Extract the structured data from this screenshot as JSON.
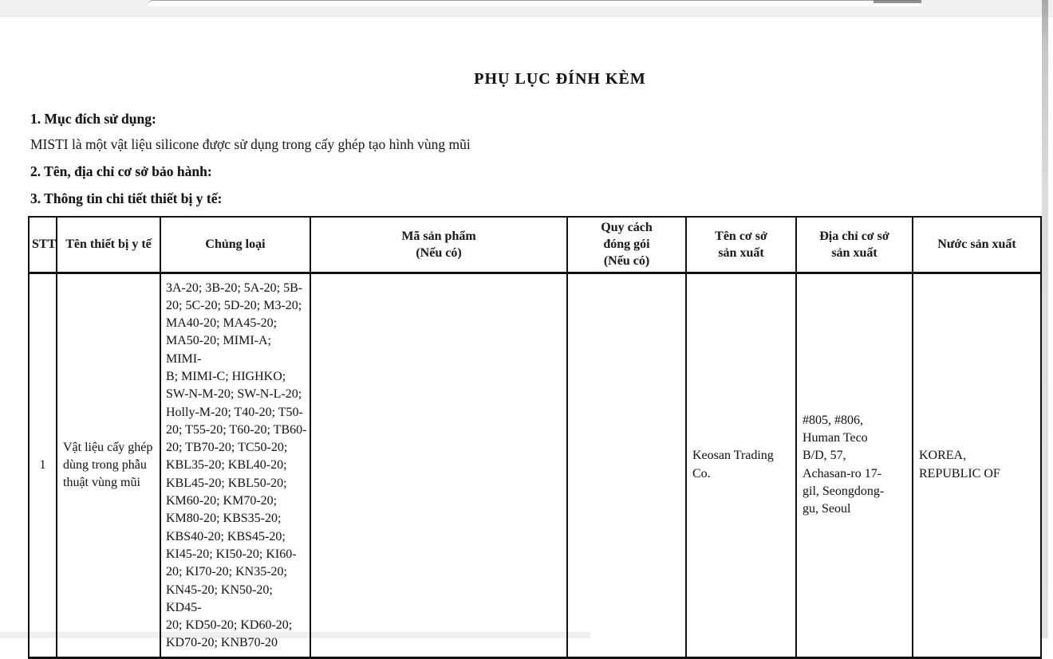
{
  "document": {
    "title": "PHỤ LỤC ĐÍNH KÈM",
    "sections": {
      "s1_heading": "1. Mục đích sử dụng:",
      "s1_body": "MISTI là một vật liệu silicone được sử dụng trong cấy ghép tạo hình vùng mũi",
      "s2_heading": "2. Tên, địa chỉ cơ sở bảo hành:",
      "s3_heading": "3. Thông tin chi tiết thiết bị y tế:"
    },
    "table": {
      "headers": {
        "stt": {
          "lines": [
            "STT"
          ]
        },
        "ten_thiet_bi": {
          "lines": [
            "Tên thiết bị y tế"
          ]
        },
        "chung_loai": {
          "lines": [
            "Chủng loại"
          ]
        },
        "ma_san_pham": {
          "lines": [
            "Mã sản phẩm",
            "(Nếu có)"
          ]
        },
        "quy_cach": {
          "lines": [
            "Quy cách",
            "đóng gói",
            "(Nếu có)"
          ]
        },
        "ten_co_so": {
          "lines": [
            "Tên cơ sở",
            "sản xuất"
          ]
        },
        "dia_chi": {
          "lines": [
            "Địa chỉ cơ sở",
            "sản xuất"
          ]
        },
        "nuoc": {
          "lines": [
            "Nước sản xuất"
          ]
        }
      },
      "rows": [
        {
          "stt": "1",
          "ten_thiet_bi": {
            "value": "Vật liệu cấy ghép dùng trong phẫu thuật vùng mũi",
            "lines": [
              "Vật liệu cấy ghép",
              "dùng trong phẫu",
              "thuật vùng mũi"
            ]
          },
          "chung_loai": {
            "value": "3A-20; 3B-20; 5A-20; 5B-20; 5C-20; 5D-20; M3-20; MA40-20; MA45-20; MA50-20; MIMI-A; MIMI-B; MIMI-C; HIGHKO; SW-N-M-20; SW-N-L-20; Holly-M-20; T40-20; T50-20; T55-20; T60-20; TB60-20; TB70-20; TC50-20; KBL35-20; KBL40-20; KBL45-20; KBL50-20; KM60-20; KM70-20; KM80-20; KBS35-20; KBS40-20; KBS45-20; KI45-20; KI50-20; KI60-20; KI70-20; KN35-20; KN45-20; KN50-20; KD45-20; KD50-20; KD60-20; KD70-20; KNB70-20",
            "lines": [
              "3A-20; 3B-20; 5A-20; 5B-",
              "20; 5C-20; 5D-20; M3-20;",
              "MA40-20; MA45-20;",
              "MA50-20; MIMI-A; MIMI-",
              "B; MIMI-C; HIGHKO;",
              "SW-N-M-20; SW-N-L-20;",
              "Holly-M-20; T40-20; T50-",
              "20; T55-20; T60-20; TB60-",
              "20; TB70-20; TC50-20;",
              "KBL35-20; KBL40-20;",
              "KBL45-20; KBL50-20;",
              "KM60-20; KM70-20;",
              "KM80-20; KBS35-20;",
              "KBS40-20; KBS45-20;",
              "KI45-20; KI50-20; KI60-",
              "20; KI70-20; KN35-20;",
              "KN45-20; KN50-20; KD45-",
              "20; KD50-20; KD60-20;",
              "KD70-20; KNB70-20"
            ]
          },
          "ma_san_pham": "",
          "quy_cach": "",
          "ten_co_so": {
            "value": "Keosan Trading Co.",
            "lines": [
              "Keosan Trading",
              "Co."
            ]
          },
          "dia_chi": {
            "value": "#805, #806, Human Teco B/D, 57, Achasan-ro 17-gil, Seongdong-gu, Seoul",
            "lines": [
              "#805, #806,",
              "Human Teco",
              "B/D, 57,",
              "Achasan-ro 17-",
              "gil, Seongdong-",
              "gu, Seoul"
            ]
          },
          "nuoc": {
            "value": "KOREA, REPUBLIC OF",
            "lines": [
              "KOREA,",
              "REPUBLIC OF"
            ]
          }
        }
      ]
    }
  }
}
